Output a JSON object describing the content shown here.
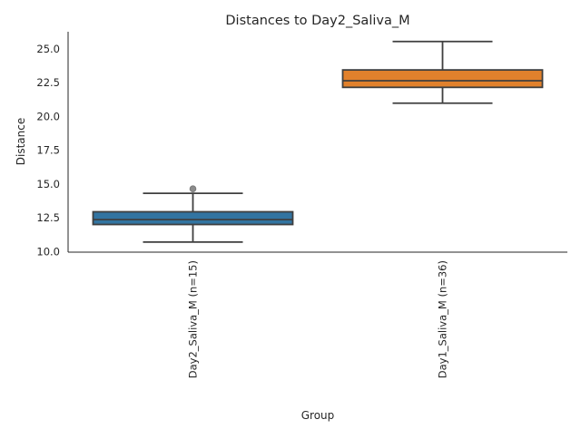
{
  "chart_data": {
    "type": "boxplot",
    "title": "Distances to Day2_Saliva_M",
    "xlabel": "Group",
    "ylabel": "Distance",
    "ylim": [
      9.95,
      26.28
    ],
    "yticks": [
      10.0,
      12.5,
      15.0,
      17.5,
      20.0,
      22.5,
      25.0
    ],
    "ytick_labels": [
      "10.0",
      "12.5",
      "15.0",
      "17.5",
      "20.0",
      "22.5",
      "25.0"
    ],
    "grid": false,
    "categories": [
      "Day2_Saliva_M (n=15)",
      "Day1_Saliva_M (n=36)"
    ],
    "boxes": [
      {
        "whislo": 10.7,
        "q1": 12.0,
        "med": 12.36,
        "q3": 12.94,
        "whishi": 14.31,
        "fliers": [
          14.64
        ],
        "color": "#3274a1"
      },
      {
        "whislo": 20.99,
        "q1": 22.16,
        "med": 22.65,
        "q3": 23.45,
        "whishi": 25.56,
        "fliers": [],
        "color": "#e1812c"
      }
    ]
  }
}
